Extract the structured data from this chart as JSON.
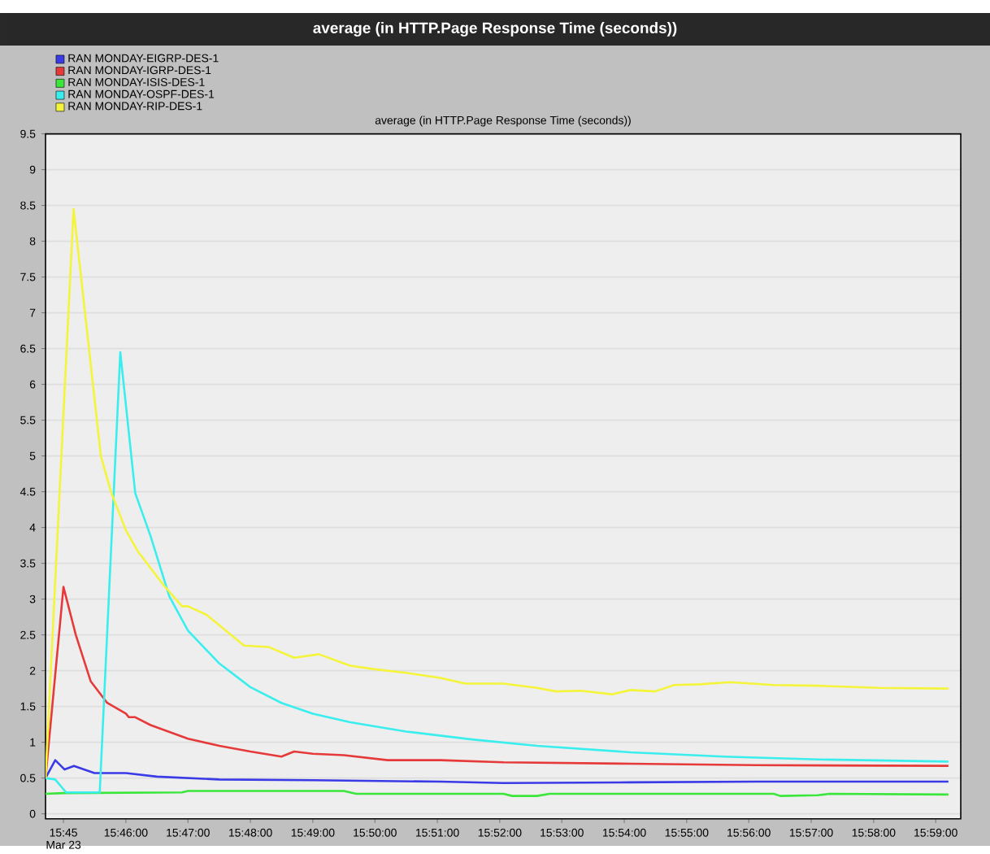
{
  "chart_data": {
    "type": "line",
    "title": "average (in HTTP.Page Response Time (seconds))",
    "subtitle": "average (in HTTP.Page Response Time (seconds))",
    "annotations": [
      "Mar 23"
    ],
    "xlim": [
      15.7452,
      15.99
    ],
    "ylim": [
      -0.07,
      9.5
    ],
    "xticks": [
      {
        "value": 15.75,
        "label": "15:45"
      },
      {
        "value": 15.7667,
        "label": "15:46:00"
      },
      {
        "value": 15.7833,
        "label": "15:47:00"
      },
      {
        "value": 15.8,
        "label": "15:48:00"
      },
      {
        "value": 15.8167,
        "label": "15:49:00"
      },
      {
        "value": 15.8333,
        "label": "15:50:00"
      },
      {
        "value": 15.85,
        "label": "15:51:00"
      },
      {
        "value": 15.8667,
        "label": "15:52:00"
      },
      {
        "value": 15.8833,
        "label": "15:53:00"
      },
      {
        "value": 15.9,
        "label": "15:54:00"
      },
      {
        "value": 15.9167,
        "label": "15:55:00"
      },
      {
        "value": 15.9333,
        "label": "15:56:00"
      },
      {
        "value": 15.95,
        "label": "15:57:00"
      },
      {
        "value": 15.9667,
        "label": "15:58:00"
      },
      {
        "value": 15.9833,
        "label": "15:59:00"
      }
    ],
    "yticks": [
      0,
      0.5,
      1,
      1.5,
      2,
      2.5,
      3,
      3.5,
      4,
      4.5,
      5,
      5.5,
      6,
      6.5,
      7,
      7.5,
      8,
      8.5,
      9,
      9.5
    ],
    "grid": "y",
    "legend": "top left",
    "line_style": "solid",
    "series": [
      {
        "name": "RAN MONDAY-EIGRP-DES-1",
        "color": "#3a3ae6",
        "x": [
          15.7452,
          15.7478,
          15.7503,
          15.7528,
          15.7583,
          15.7667,
          15.775,
          15.7917,
          15.8167,
          15.8508,
          15.8677,
          15.9017,
          15.935,
          15.9867
        ],
        "values": [
          0.5,
          0.75,
          0.62,
          0.67,
          0.57,
          0.57,
          0.52,
          0.48,
          0.47,
          0.45,
          0.43,
          0.44,
          0.45,
          0.45
        ]
      },
      {
        "name": "RAN MONDAY-IGRP-DES-1",
        "color": "#e63a3a",
        "x": [
          15.7452,
          15.75,
          15.7533,
          15.7573,
          15.7617,
          15.7667,
          15.7675,
          15.7692,
          15.7733,
          15.7833,
          15.7917,
          15.8,
          15.8083,
          15.8117,
          15.8167,
          15.825,
          15.8367,
          15.8508,
          15.8677,
          15.9017,
          15.935,
          15.9867
        ],
        "values": [
          0.5,
          3.17,
          2.5,
          1.85,
          1.55,
          1.4,
          1.35,
          1.35,
          1.24,
          1.05,
          0.95,
          0.87,
          0.8,
          0.87,
          0.84,
          0.82,
          0.75,
          0.75,
          0.72,
          0.7,
          0.68,
          0.67
        ]
      },
      {
        "name": "RAN MONDAY-ISIS-DES-1",
        "color": "#3ae63a",
        "x": [
          15.7452,
          15.75,
          15.7817,
          15.7833,
          15.825,
          15.8283,
          15.8677,
          15.87,
          15.8767,
          15.88,
          15.94,
          15.9417,
          15.9517,
          15.955,
          15.9867
        ],
        "values": [
          0.28,
          0.29,
          0.3,
          0.32,
          0.32,
          0.28,
          0.28,
          0.25,
          0.25,
          0.28,
          0.28,
          0.25,
          0.26,
          0.28,
          0.27
        ]
      },
      {
        "name": "RAN MONDAY-OSPF-DES-1",
        "color": "#3aeeee",
        "x": [
          15.7452,
          15.7478,
          15.7507,
          15.7597,
          15.7652,
          15.7692,
          15.7733,
          15.7783,
          15.7833,
          15.7917,
          15.8,
          15.8083,
          15.8167,
          15.8267,
          15.8417,
          15.8592,
          15.8767,
          15.9017,
          15.9267,
          15.9517,
          15.9867
        ],
        "values": [
          0.5,
          0.48,
          0.3,
          0.3,
          6.45,
          4.48,
          3.88,
          3.04,
          2.56,
          2.1,
          1.77,
          1.55,
          1.4,
          1.28,
          1.15,
          1.04,
          0.95,
          0.86,
          0.8,
          0.76,
          0.73
        ]
      },
      {
        "name": "RAN MONDAY-RIP-DES-1",
        "color": "#f4f43a",
        "x": [
          15.7452,
          15.7527,
          15.76,
          15.7627,
          15.7667,
          15.77,
          15.7767,
          15.7817,
          15.7833,
          15.7883,
          15.7983,
          15.805,
          15.8117,
          15.8183,
          15.8267,
          15.8333,
          15.8417,
          15.8508,
          15.8575,
          15.8677,
          15.8767,
          15.8817,
          15.8883,
          15.8967,
          15.9017,
          15.9083,
          15.9133,
          15.92,
          15.9283,
          15.94,
          15.9517,
          15.9683,
          15.9867
        ],
        "values": [
          0.5,
          8.45,
          5.0,
          4.5,
          3.96,
          3.66,
          3.2,
          2.9,
          2.9,
          2.78,
          2.35,
          2.33,
          2.18,
          2.23,
          2.07,
          2.02,
          1.97,
          1.9,
          1.82,
          1.82,
          1.76,
          1.71,
          1.72,
          1.67,
          1.73,
          1.71,
          1.8,
          1.81,
          1.84,
          1.8,
          1.79,
          1.76,
          1.75
        ]
      }
    ]
  }
}
